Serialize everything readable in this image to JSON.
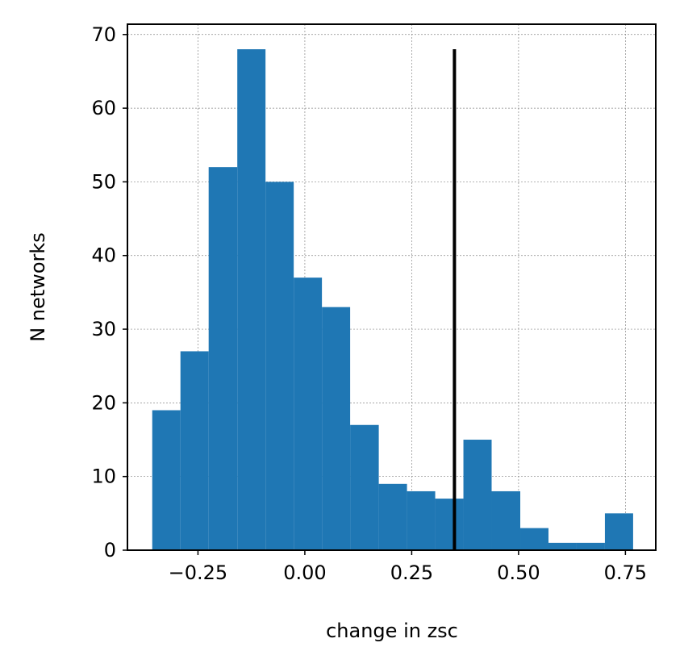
{
  "chart_data": {
    "type": "histogram",
    "xlabel": "change in zsc",
    "ylabel": "N networks",
    "bins": [
      -0.357,
      -0.291,
      -0.225,
      -0.158,
      -0.092,
      -0.026,
      0.04,
      0.106,
      0.173,
      0.239,
      0.305,
      0.371,
      0.437,
      0.504,
      0.57,
      0.636,
      0.702,
      0.768
    ],
    "values": [
      19,
      27,
      52,
      68,
      50,
      37,
      33,
      17,
      9,
      8,
      7,
      15,
      8,
      3,
      1,
      1,
      5
    ],
    "color": "#1f77b4",
    "vline": {
      "x": 0.35,
      "ymin": 0,
      "ymax": 68,
      "color": "#000000"
    },
    "xlim": [
      -0.415,
      0.821
    ],
    "ylim": [
      0,
      71.4
    ],
    "xticks": [
      {
        "value": -0.25,
        "label": "−0.25"
      },
      {
        "value": 0,
        "label": "0.00"
      },
      0.25,
      {
        "value": 0.5,
        "label": "0.50"
      },
      0.75
    ],
    "yticks": [
      0,
      10,
      20,
      30,
      40,
      50,
      60,
      70
    ],
    "grid": true
  }
}
